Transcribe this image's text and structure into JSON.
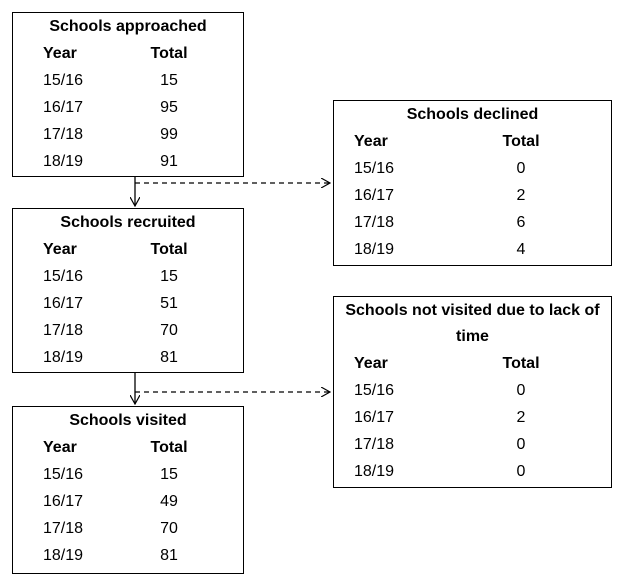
{
  "nodes": [
    {
      "title": "Schools approached",
      "headers": [
        "Year",
        "Total"
      ],
      "rows": [
        [
          "15/16",
          "15"
        ],
        [
          "16/17",
          "95"
        ],
        [
          "17/18",
          "99"
        ],
        [
          "18/19",
          "91"
        ]
      ]
    },
    {
      "title": "Schools recruited",
      "headers": [
        "Year",
        "Total"
      ],
      "rows": [
        [
          "15/16",
          "15"
        ],
        [
          "16/17",
          "51"
        ],
        [
          "17/18",
          "70"
        ],
        [
          "18/19",
          "81"
        ]
      ]
    },
    {
      "title": "Schools visited",
      "headers": [
        "Year",
        "Total"
      ],
      "rows": [
        [
          "15/16",
          "15"
        ],
        [
          "16/17",
          "49"
        ],
        [
          "17/18",
          "70"
        ],
        [
          "18/19",
          "81"
        ]
      ]
    },
    {
      "title": "Schools declined",
      "headers": [
        "Year",
        "Total"
      ],
      "rows": [
        [
          "15/16",
          "0"
        ],
        [
          "16/17",
          "2"
        ],
        [
          "17/18",
          "6"
        ],
        [
          "18/19",
          "4"
        ]
      ]
    },
    {
      "title": "Schools not visited due to lack of time",
      "headers": [
        "Year",
        "Total"
      ],
      "rows": [
        [
          "15/16",
          "0"
        ],
        [
          "16/17",
          "2"
        ],
        [
          "17/18",
          "0"
        ],
        [
          "18/19",
          "0"
        ]
      ]
    }
  ]
}
